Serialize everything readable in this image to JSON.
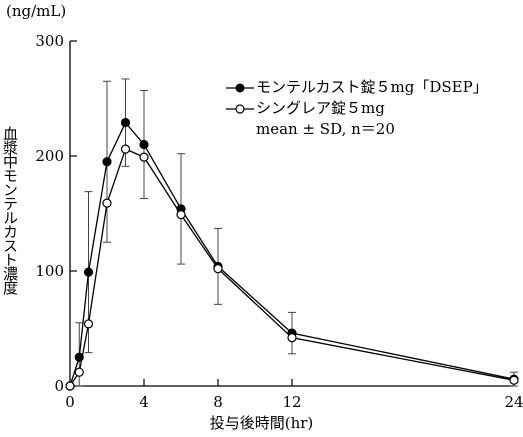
{
  "chart_data": {
    "type": "line",
    "unit_label": "(ng/mL)",
    "xlabel": "投与後時間(hr)",
    "ylabel": "血漿中モンテルカスト濃度",
    "xlim": [
      0,
      24
    ],
    "ylim": [
      0,
      300
    ],
    "x_ticks": [
      0,
      4,
      8,
      12,
      24
    ],
    "y_ticks": [
      0,
      100,
      200,
      300
    ],
    "x_tick_labels": [
      "0",
      "4",
      "8",
      "12",
      "24"
    ],
    "y_tick_labels": [
      "0",
      "100",
      "200",
      "300"
    ],
    "legend_note": "mean ± SD, n＝20",
    "legend_position": "top-right",
    "grid": false,
    "series": [
      {
        "name": "モンテルカスト錠５mg「DSEP」",
        "marker": "filled-circle",
        "x": [
          0,
          0.5,
          1,
          2,
          3,
          4,
          6,
          8,
          12,
          24
        ],
        "y": [
          0,
          25,
          99,
          195,
          229,
          210,
          154,
          104,
          46,
          6
        ],
        "sd": [
          0,
          30,
          70,
          70,
          38,
          47,
          48,
          33,
          18,
          6
        ]
      },
      {
        "name": "シングレア錠５mg",
        "marker": "open-circle",
        "x": [
          0,
          0.5,
          1,
          2,
          3,
          4,
          6,
          8,
          12,
          24
        ],
        "y": [
          0,
          12,
          54,
          159,
          206,
          199,
          149,
          102,
          42,
          5
        ],
        "sd": [
          0,
          0,
          0,
          0,
          0,
          0,
          0,
          0,
          0,
          0
        ]
      }
    ]
  }
}
